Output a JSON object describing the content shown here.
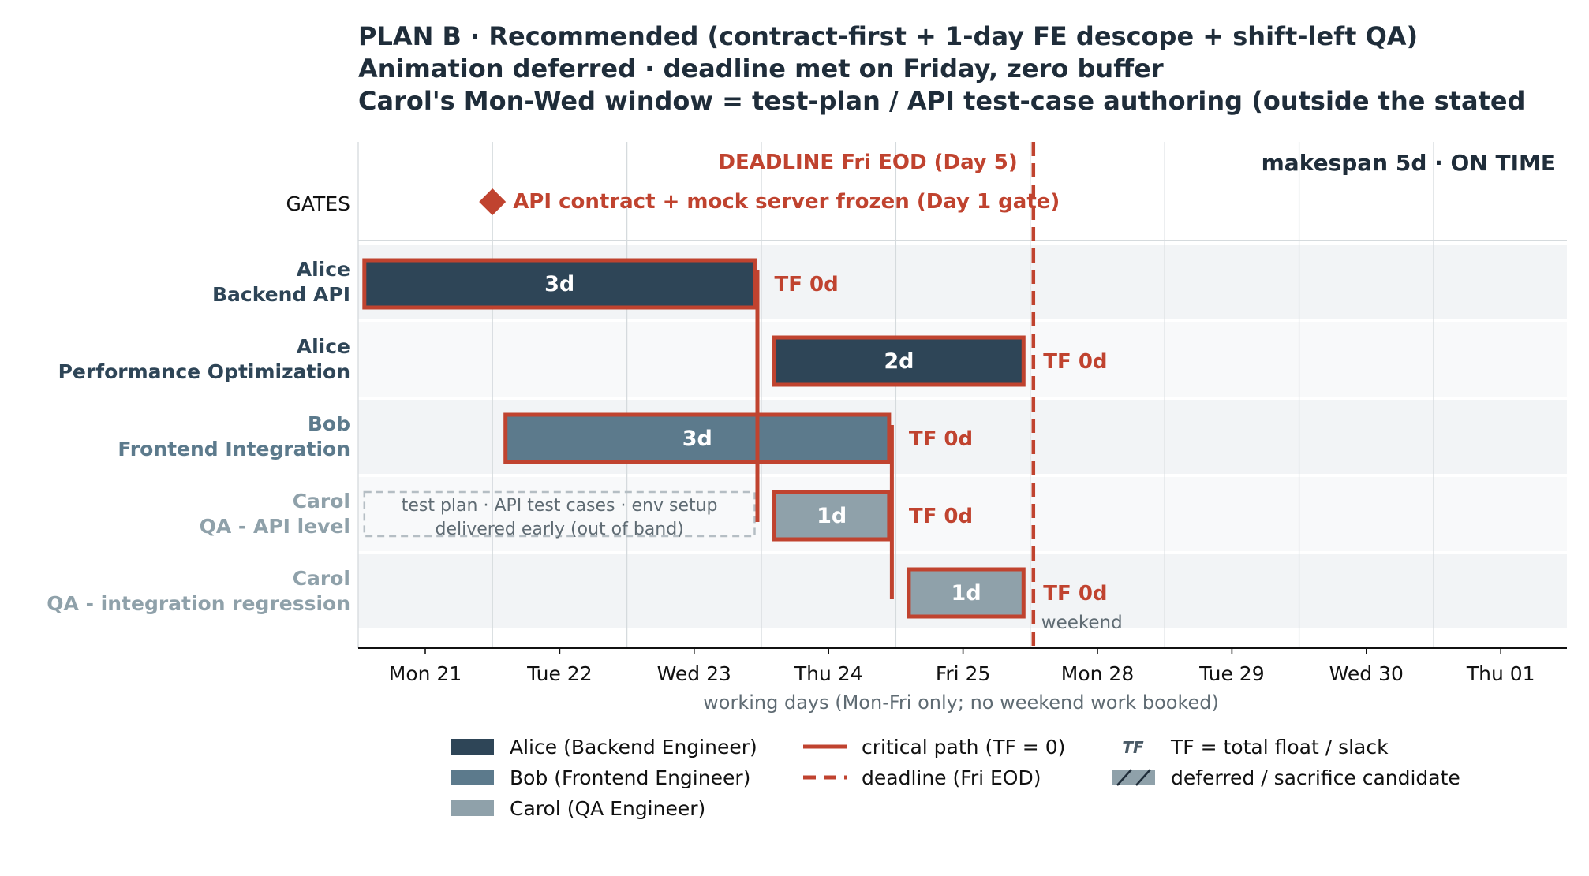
{
  "title_lines": [
    "PLAN B · Recommended (contract-first + 1-day FE descope + shift-left QA)",
    "Animation deferred · deadline met on Friday, zero buffer",
    "Carol's Mon-Wed window = test-plan / API test-case authoring (outside the stated"
  ],
  "chart_data": {
    "type": "gantt",
    "x_axis": {
      "label": "working days (Mon-Fri only; no weekend work booked)",
      "ticks": [
        "Mon 21",
        "Tue 22",
        "Wed 23",
        "Thu 24",
        "Fri 25",
        "Mon 28",
        "Tue 29",
        "Wed 30",
        "Thu 01"
      ],
      "range_days": [
        -0.5,
        8.5
      ]
    },
    "gate_row_label": "GATES",
    "gate": {
      "label": "API contract + mock server frozen  (Day 1 gate)",
      "day": 0.5
    },
    "deadline": {
      "label": "DEADLINE  Fri EOD (Day 5)",
      "day": 4.5
    },
    "makespan_label": "makespan 5d  ·  ON TIME",
    "weekend_label": "weekend",
    "rows": [
      {
        "name": "Alice",
        "task": "Backend API",
        "color": "#2e4557",
        "label_color": "#2e4557",
        "start": -0.5,
        "end": 2.45,
        "duration_label": "3d",
        "tf_label": "TF 0d"
      },
      {
        "name": "Alice",
        "task": "Performance Optimization",
        "color": "#2e4557",
        "label_color": "#2e4557",
        "start": 2.55,
        "end": 4.45,
        "duration_label": "2d",
        "tf_label": "TF 0d"
      },
      {
        "name": "Bob",
        "task": "Frontend Integration",
        "color": "#5c7a8c",
        "label_color": "#5c7a8c",
        "start": 0.55,
        "end": 3.45,
        "duration_label": "3d",
        "tf_label": "TF 0d"
      },
      {
        "name": "Carol",
        "task": "QA - API level",
        "color": "#8fa1aa",
        "label_color": "#8fa1aa",
        "start": 2.55,
        "end": 3.45,
        "duration_label": "1d",
        "tf_label": "TF 0d",
        "prework": {
          "start": -0.5,
          "end": 2.45,
          "lines": [
            "test plan · API test cases · env setup",
            "delivered early (out of band)"
          ]
        }
      },
      {
        "name": "Carol",
        "task": "QA - integration regression",
        "color": "#8fa1aa",
        "label_color": "#8fa1aa",
        "start": 3.55,
        "end": 4.45,
        "duration_label": "1d",
        "tf_label": "TF 0d"
      }
    ],
    "critical_links": [
      {
        "day": 2.5,
        "from_row": 0,
        "to_row": 3
      },
      {
        "day": 3.5,
        "from_row": 2,
        "to_row": 4
      }
    ],
    "legend": [
      {
        "kind": "swatch",
        "color": "#2e4557",
        "label": "Alice (Backend Engineer)"
      },
      {
        "kind": "swatch",
        "color": "#5c7a8c",
        "label": "Bob (Frontend Engineer)"
      },
      {
        "kind": "swatch",
        "color": "#8fa1aa",
        "label": "Carol (QA Engineer)"
      },
      {
        "kind": "line",
        "color": "#c0432f",
        "label": "critical path (TF = 0)"
      },
      {
        "kind": "dashed",
        "color": "#c0432f",
        "label": "deadline (Fri EOD)"
      },
      {
        "kind": "tf",
        "glyph": "TF",
        "label": "TF = total float / slack"
      },
      {
        "kind": "hatch",
        "color": "#8fa1aa",
        "label": "deferred / sacrifice candidate"
      }
    ],
    "colors": {
      "critical": "#c0432f",
      "row_band": "#f2f4f6",
      "grid": "#d5dadd"
    }
  }
}
